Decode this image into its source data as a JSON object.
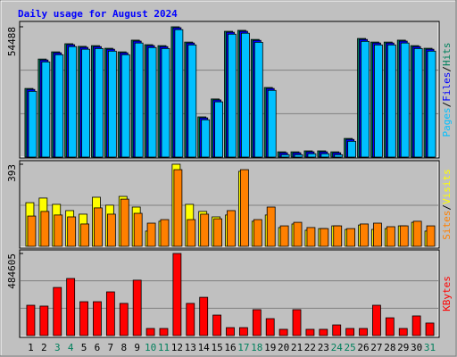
{
  "title": "Daily usage for August 2024",
  "chart_data": [
    {
      "type": "bar",
      "legend_separator": "/",
      "series": [
        {
          "name": "Hits",
          "color": "#00805c",
          "values": [
            28700,
            41000,
            44000,
            47400,
            46300,
            46600,
            45500,
            44000,
            48900,
            47000,
            46600,
            54488,
            48100,
            16800,
            24300,
            52600,
            53000,
            49200,
            29100,
            2200,
            2200,
            2600,
            2600,
            2200,
            7800,
            49600,
            48100,
            48100,
            48900,
            46600,
            45500
          ]
        },
        {
          "name": "Files",
          "color": "#0000ff",
          "values": [
            28300,
            40600,
            43600,
            47000,
            45900,
            46200,
            45100,
            43600,
            48500,
            46600,
            46200,
            54088,
            47700,
            16400,
            23900,
            52200,
            52600,
            48800,
            28700,
            1800,
            1800,
            2200,
            2200,
            1800,
            7400,
            49200,
            47700,
            47700,
            48500,
            46200,
            45100
          ]
        },
        {
          "name": "Pages",
          "color": "#00c0ff",
          "values": [
            27500,
            39800,
            42800,
            46200,
            45100,
            45400,
            44300,
            42800,
            47700,
            45800,
            45400,
            53288,
            46900,
            15600,
            23100,
            51400,
            51800,
            48000,
            27900,
            1000,
            1000,
            1400,
            1400,
            1000,
            6600,
            48400,
            46900,
            46900,
            47700,
            45400,
            44300
          ]
        }
      ],
      "ylim": [
        0,
        54488
      ],
      "yticks": [
        54488
      ]
    },
    {
      "type": "bar",
      "legend_separator": "/",
      "series": [
        {
          "name": "Visits",
          "color": "#ffff00",
          "values": [
            209,
            231,
            201,
            171,
            154,
            235,
            197,
            239,
            188,
            73,
            120,
            393,
            201,
            167,
            141,
            150,
            359,
            120,
            150,
            90,
            107,
            77,
            85,
            98,
            81,
            102,
            81,
            85,
            98,
            115,
            73
          ]
        },
        {
          "name": "Sites",
          "color": "#ff8000",
          "values": [
            145,
            167,
            150,
            141,
            107,
            184,
            154,
            226,
            158,
            111,
            128,
            367,
            128,
            154,
            132,
            171,
            367,
            128,
            188,
            98,
            115,
            90,
            85,
            98,
            85,
            107,
            111,
            94,
            98,
            120,
            98
          ]
        }
      ],
      "ylim": [
        0,
        393
      ],
      "yticks": [
        393
      ]
    },
    {
      "type": "bar",
      "categories": [
        "1",
        "2",
        "3",
        "4",
        "5",
        "6",
        "7",
        "8",
        "9",
        "10",
        "11",
        "12",
        "13",
        "14",
        "15",
        "16",
        "17",
        "18",
        "19",
        "20",
        "21",
        "22",
        "23",
        "24",
        "25",
        "26",
        "27",
        "28",
        "29",
        "30",
        "31"
      ],
      "weekend_color": "#00805c",
      "weekend": [
        2,
        3,
        9,
        10,
        16,
        17,
        23,
        24,
        30
      ],
      "series": [
        {
          "name": "KBytes",
          "color": "#ff0000",
          "values": [
            179000,
            174000,
            284000,
            337000,
            200000,
            200000,
            258000,
            190000,
            327000,
            42000,
            42000,
            484605,
            190000,
            226000,
            121000,
            47000,
            47000,
            153000,
            100000,
            37000,
            153000,
            37000,
            37000,
            63000,
            42000,
            42000,
            179000,
            105000,
            42000,
            116000,
            74000
          ]
        }
      ],
      "ylim": [
        0,
        484605
      ],
      "yticks": [
        484605
      ]
    }
  ]
}
